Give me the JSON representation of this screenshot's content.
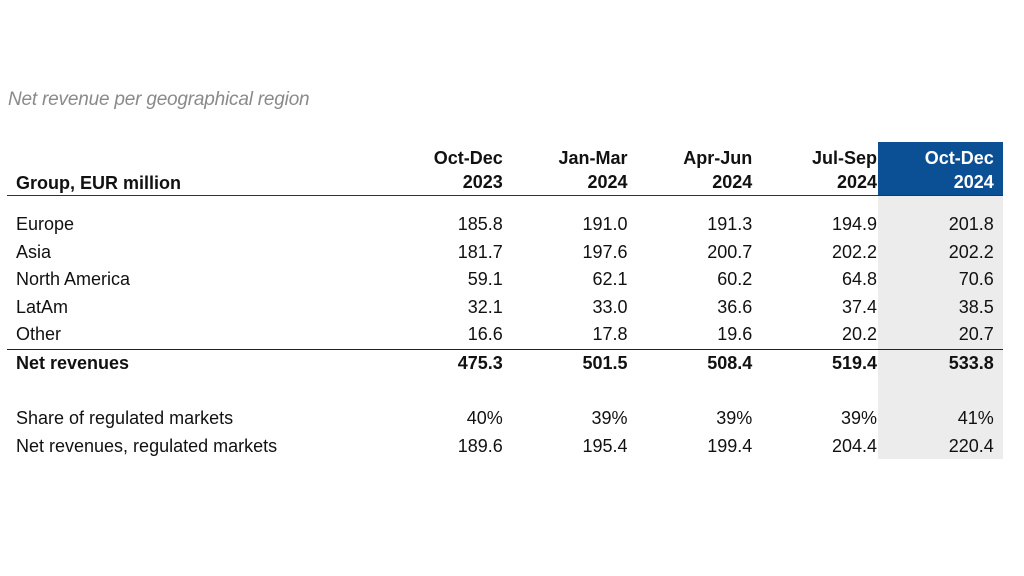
{
  "subtitle": "Net revenue per geographical region",
  "header": {
    "label": "Group, EUR million",
    "periods": [
      {
        "line1": "Oct-Dec",
        "line2": "2023"
      },
      {
        "line1": "Jan-Mar",
        "line2": "2024"
      },
      {
        "line1": "Apr-Jun",
        "line2": "2024"
      },
      {
        "line1": "Jul-Sep",
        "line2": "2024"
      },
      {
        "line1": "Oct-Dec",
        "line2": "2024"
      }
    ]
  },
  "regions": [
    {
      "label": "Europe",
      "values": [
        "185.8",
        "191.0",
        "191.3",
        "194.9",
        "201.8"
      ]
    },
    {
      "label": "Asia",
      "values": [
        "181.7",
        "197.6",
        "200.7",
        "202.2",
        "202.2"
      ]
    },
    {
      "label": "North America",
      "values": [
        "59.1",
        "62.1",
        "60.2",
        "64.8",
        "70.6"
      ]
    },
    {
      "label": "LatAm",
      "values": [
        "32.1",
        "33.0",
        "36.6",
        "37.4",
        "38.5"
      ]
    },
    {
      "label": "Other",
      "values": [
        "16.6",
        "17.8",
        "19.6",
        "20.2",
        "20.7"
      ]
    }
  ],
  "total": {
    "label": "Net revenues",
    "values": [
      "475.3",
      "501.5",
      "508.4",
      "519.4",
      "533.8"
    ]
  },
  "regulated_share": {
    "label": "Share of regulated markets",
    "values": [
      "40%",
      "39%",
      "39%",
      "39%",
      "41%"
    ]
  },
  "regulated_revenue": {
    "label": "Net revenues, regulated markets",
    "values": [
      "189.6",
      "195.4",
      "199.4",
      "204.4",
      "220.4"
    ]
  },
  "colors": {
    "highlight_header": "#0b4f94",
    "highlight_column": "#ececec",
    "subtitle": "#8a8a8a"
  }
}
